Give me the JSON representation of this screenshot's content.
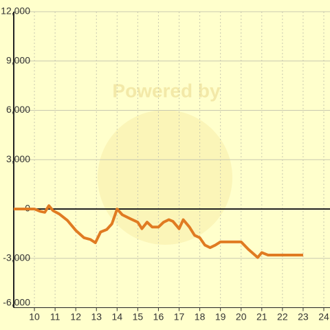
{
  "chart_data": {
    "type": "line",
    "watermark": "Powered by",
    "x": [
      9,
      10,
      10.3,
      10.5,
      10.7,
      10.9,
      11.2,
      11.6,
      12,
      12.4,
      12.7,
      12.95,
      13.2,
      13.5,
      13.75,
      14,
      14.25,
      14.65,
      15,
      15.2,
      15.45,
      15.7,
      16,
      16.25,
      16.5,
      16.7,
      17,
      17.2,
      17.5,
      17.75,
      18,
      18.25,
      18.5,
      18.75,
      19,
      20,
      20.35,
      20.8,
      21,
      21.3,
      21.7,
      23
    ],
    "series": [
      {
        "color": "#e07b22",
        "values": [
          0,
          0,
          -150,
          -200,
          200,
          -100,
          -300,
          -700,
          -1300,
          -1750,
          -1850,
          -2050,
          -1400,
          -1250,
          -900,
          0,
          -350,
          -600,
          -800,
          -1200,
          -800,
          -1100,
          -1100,
          -800,
          -650,
          -750,
          -1200,
          -650,
          -1100,
          -1600,
          -1750,
          -2200,
          -2350,
          -2200,
          -2000,
          -2000,
          -2450,
          -2950,
          -2650,
          -2800,
          -2800,
          -2800
        ]
      }
    ],
    "xlim": [
      9,
      24.3
    ],
    "xticks": [
      10,
      11,
      12,
      13,
      14,
      15,
      16,
      17,
      18,
      19,
      20,
      21,
      22,
      23,
      24
    ],
    "ylim": [
      -6000,
      12000
    ],
    "yticks": [
      {
        "value": -6000,
        "label": "-6,000"
      },
      {
        "value": -3000,
        "label": "-3,000"
      },
      0,
      {
        "value": 3000,
        "label": "3,000"
      },
      {
        "value": 6000,
        "label": "6,000"
      },
      {
        "value": 9000,
        "label": "9,000"
      },
      {
        "value": 12000,
        "label": "12,000"
      }
    ],
    "grid": true
  }
}
